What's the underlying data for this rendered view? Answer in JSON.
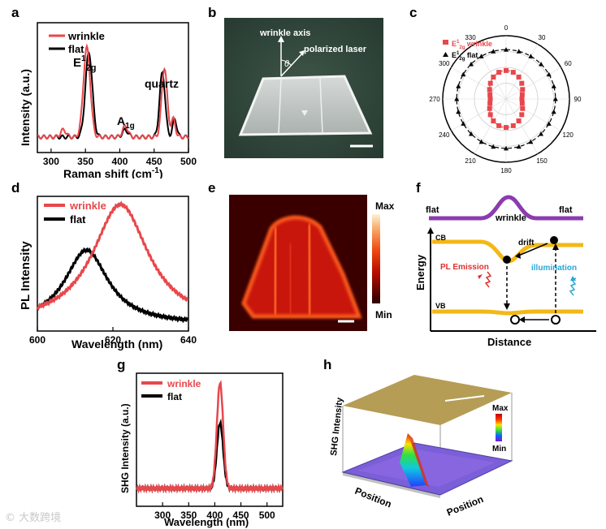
{
  "panels": {
    "a": {
      "label": "a"
    },
    "b": {
      "label": "b",
      "axis_label": "wrinkle axis",
      "laser_label": "polarized laser",
      "angle_symbol": "θ"
    },
    "c": {
      "label": "c"
    },
    "d": {
      "label": "d"
    },
    "e": {
      "label": "e",
      "bar_max": "Max",
      "bar_min": "Min"
    },
    "f": {
      "label": "f",
      "flat_left": "flat",
      "wrinkle": "wrinkle",
      "flat_right": "flat",
      "cb": "CB",
      "vb": "VB",
      "drift": "drift",
      "pl_emission": "PL Emission",
      "illumination": "illumination",
      "ylabel": "Energy",
      "xlabel": "Distance"
    },
    "g": {
      "label": "g"
    },
    "h": {
      "label": "h",
      "zlabel": "SHG Intensity",
      "pos1": "Position",
      "pos2": "Position",
      "bar_max": "Max",
      "bar_min": "Min"
    }
  },
  "colors": {
    "wrinkle": "#e8474c",
    "flat": "#000000",
    "purple": "#8a3cae",
    "yellow": "#f3b817",
    "cyan": "#2aa7d8",
    "red": "#e0302e"
  },
  "watermark": "© 大数跨境",
  "chart_data": [
    {
      "id": "a",
      "type": "line",
      "xlabel": "Raman shift (cm-1)",
      "ylabel": "Intensity (a.u.)",
      "xlim": [
        280,
        500
      ],
      "xticks": [
        300,
        350,
        400,
        450,
        500
      ],
      "legend": [
        "wrinkle",
        "flat"
      ],
      "annotations": [
        {
          "text": "E12g",
          "x": 350
        },
        {
          "text": "A1g",
          "x": 408
        },
        {
          "text": "quartz",
          "x": 463
        }
      ],
      "series": [
        {
          "name": "wrinkle",
          "peaks": [
            [
              352,
              1.0,
              5
            ],
            [
              408,
              0.12,
              4
            ],
            [
              465,
              0.78,
              4
            ],
            [
              478,
              0.2,
              3
            ]
          ]
        },
        {
          "name": "flat",
          "peaks": [
            [
              355,
              0.95,
              5
            ],
            [
              408,
              0.08,
              4
            ],
            [
              462,
              0.72,
              4
            ],
            [
              480,
              0.2,
              3
            ]
          ]
        }
      ]
    },
    {
      "id": "c",
      "type": "scatter",
      "legend": [
        "E12g wrinkle",
        "E12g flat"
      ],
      "angles": [
        0,
        30,
        60,
        90,
        120,
        150,
        180,
        210,
        240,
        270,
        300,
        330
      ],
      "series": [
        {
          "name": "E12g wrinkle",
          "radius_form": "0.35+0.10*cos(2θ)"
        },
        {
          "name": "E12g flat",
          "radius_form": "0.78"
        }
      ]
    },
    {
      "id": "d",
      "type": "line",
      "xlabel": "Wavelength (nm)",
      "ylabel": "PL Intensity",
      "xlim": [
        600,
        640
      ],
      "xticks": [
        600,
        620,
        640
      ],
      "legend": [
        "wrinkle",
        "flat"
      ],
      "series": [
        {
          "name": "wrinkle",
          "peak": 622,
          "height": 1.0,
          "width": 9
        },
        {
          "name": "flat",
          "peak": 613,
          "height": 0.62,
          "width": 7
        }
      ]
    },
    {
      "id": "g",
      "type": "line",
      "xlabel": "Wavelength (nm)",
      "ylabel": "SHG Intensity (a.u.)",
      "xlim": [
        250,
        530
      ],
      "xticks": [
        300,
        350,
        400,
        450,
        500
      ],
      "legend": [
        "wrinkle",
        "flat"
      ],
      "series": [
        {
          "name": "wrinkle",
          "peak": 410,
          "height": 1.0,
          "width": 6
        },
        {
          "name": "flat",
          "peak": 410,
          "height": 0.62,
          "width": 6
        }
      ]
    }
  ],
  "axis_text": {
    "a": {
      "xlabel": "Raman shift (cm",
      "xlabel_sup": "-1",
      "xlabel_end": ")",
      "ylabel": "Intensity (a.u.)",
      "ticks": [
        "300",
        "350",
        "400",
        "450",
        "500"
      ],
      "leg1": "wrinkle",
      "leg2": "flat",
      "e2g_main": "E",
      "e2g_sup": "1",
      "e2g_sub": "2g",
      "a1g_main": "A",
      "a1g_sub": "1g",
      "quartz": "quartz"
    },
    "c": {
      "ticks": [
        "0",
        "30",
        "60",
        "90",
        "120",
        "150",
        "180",
        "210",
        "240",
        "270",
        "300",
        "330"
      ],
      "leg1_main": "E",
      "leg1_sup": "1",
      "leg1_sub": "2g",
      "leg1_rest": " wrinkle",
      "leg2_main": "E",
      "leg2_sup": "1",
      "leg2_sub": "2g",
      "leg2_rest": " flat"
    },
    "d": {
      "xlabel": "Wavelength (nm)",
      "ylabel": "PL Intensity",
      "ticks": [
        "600",
        "620",
        "640"
      ],
      "leg1": "wrinkle",
      "leg2": "flat"
    },
    "g": {
      "xlabel": "Wavelength (nm)",
      "ylabel": "SHG Intensity (a.u.)",
      "ticks": [
        "300",
        "350",
        "400",
        "450",
        "500"
      ],
      "leg1": "wrinkle",
      "leg2": "flat"
    }
  }
}
